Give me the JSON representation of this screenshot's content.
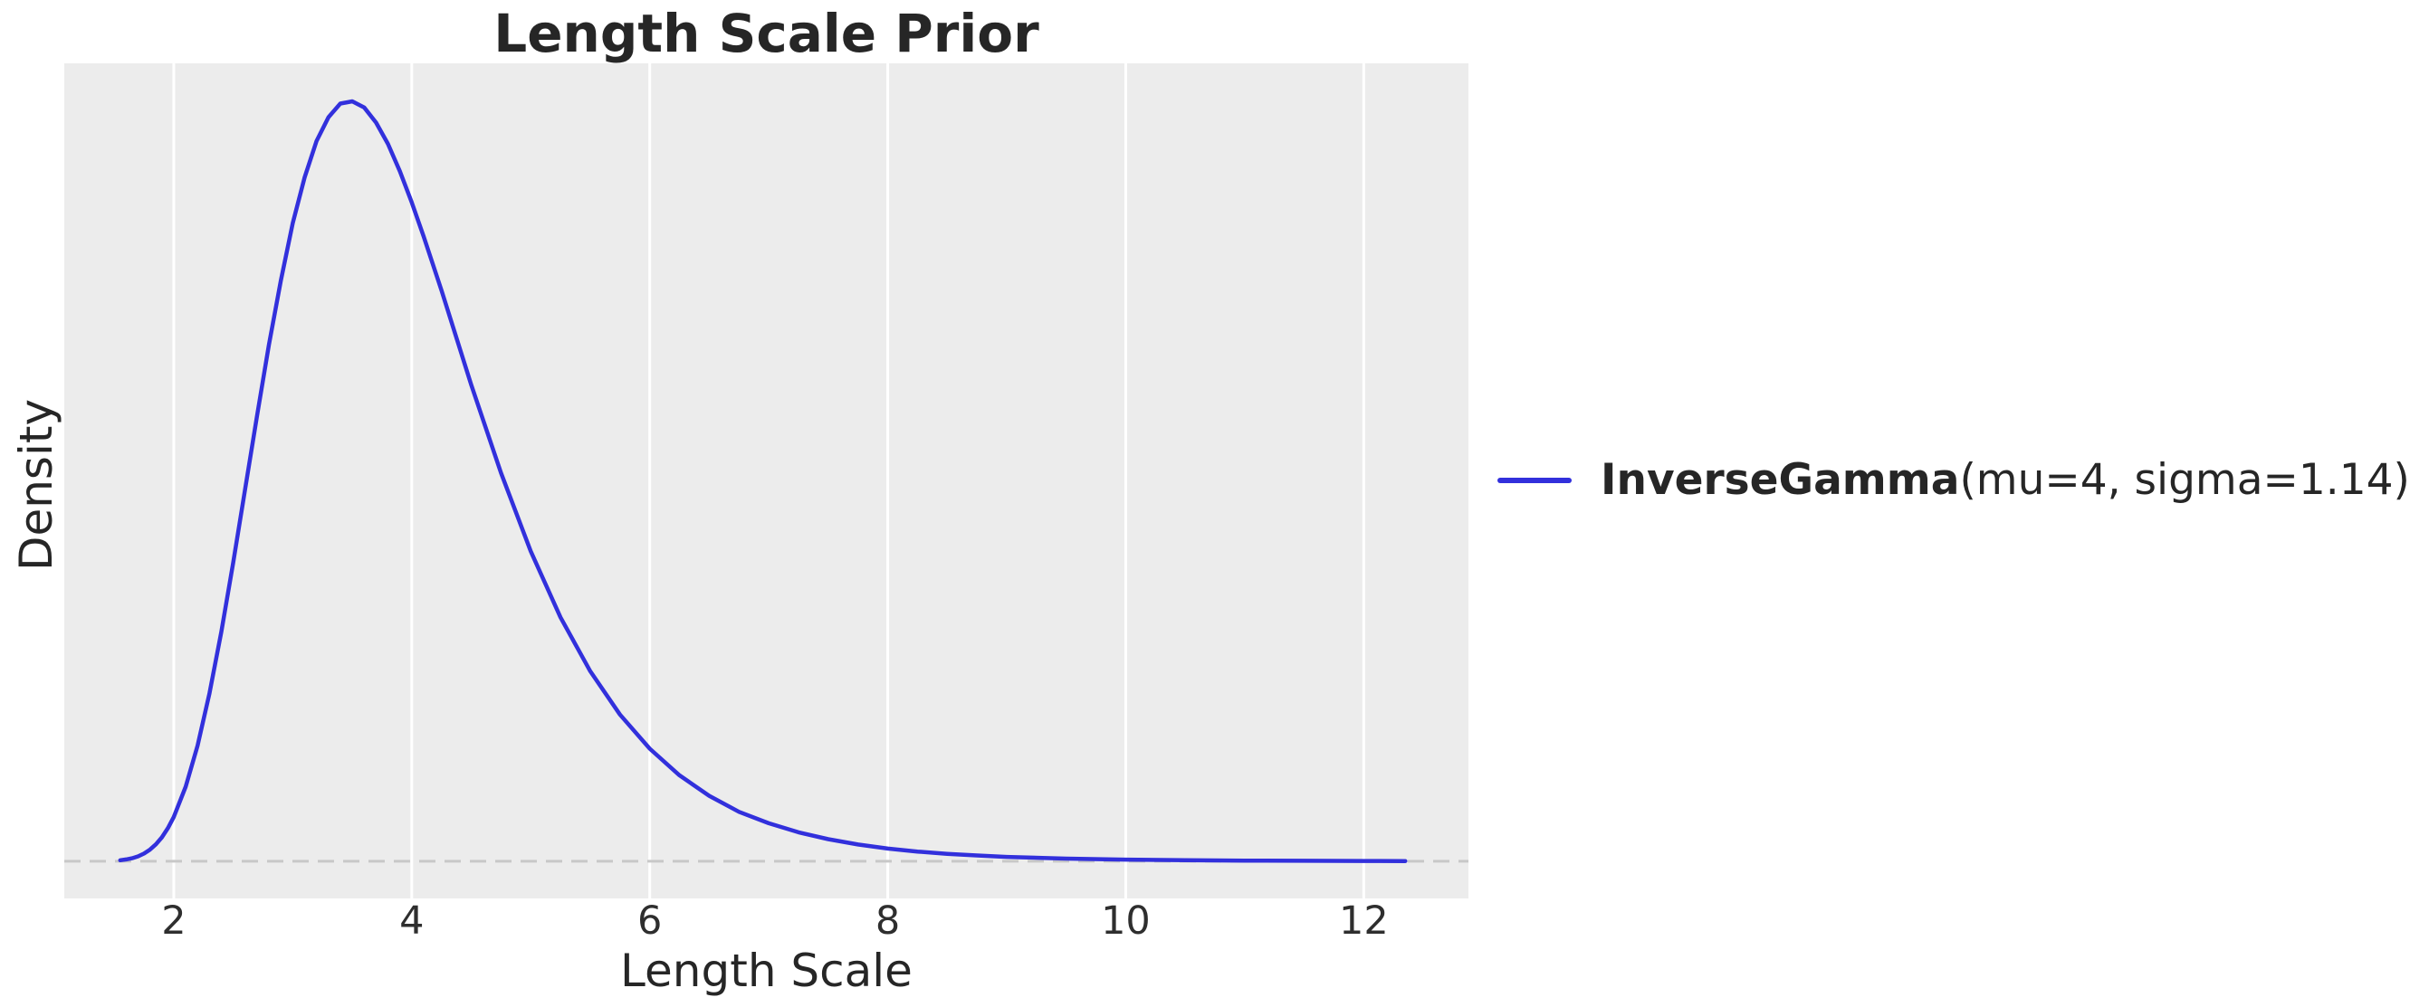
{
  "figure": {
    "title": "Length Scale Prior",
    "xlabel": "Length Scale",
    "ylabel": "Density"
  },
  "legend": {
    "position": "center-right outside plot",
    "label_bold": "InverseGamma",
    "label_regular": "(mu=4, sigma=1.14)",
    "full_label": "InverseGamma(mu=4, sigma=1.14)"
  },
  "colors": {
    "figure_background": "#ffffff",
    "panel_background": "#ececec",
    "gridline": "#ffffff",
    "curve": "#3230dc",
    "zero_line": "#c8c8c8",
    "text": "#262626",
    "tick_text": "#2e2e2e"
  },
  "chart_data": {
    "type": "line",
    "title": "Length Scale Prior",
    "xlabel": "Length Scale",
    "ylabel": "Density",
    "xlim": [
      1.08,
      12.88
    ],
    "ylim": [
      -0.049,
      1.05
    ],
    "x_ticks": [
      2,
      4,
      6,
      8,
      10,
      12
    ],
    "y_ticks": [],
    "grid": "vertical-gridlines-only",
    "zero_line": {
      "y": 0,
      "style": "dashed",
      "color": "#c8c8c8",
      "dash": [
        18,
        10
      ],
      "width": 3
    },
    "legend_position": "right of plot, vertically centered",
    "series": [
      {
        "name": "InverseGamma(mu=4, sigma=1.14)",
        "color": "#3230dc",
        "line_width": 4.5,
        "peak_x": 3.48,
        "density_normalized_to_peak": true,
        "points": [
          [
            1.55,
            0.0013
          ],
          [
            1.6,
            0.0023
          ],
          [
            1.65,
            0.0039
          ],
          [
            1.7,
            0.0064
          ],
          [
            1.75,
            0.01
          ],
          [
            1.8,
            0.0152
          ],
          [
            1.85,
            0.0222
          ],
          [
            1.9,
            0.0314
          ],
          [
            1.95,
            0.0434
          ],
          [
            2.0,
            0.058
          ],
          [
            2.1,
            0.098
          ],
          [
            2.2,
            0.152
          ],
          [
            2.3,
            0.221
          ],
          [
            2.4,
            0.302
          ],
          [
            2.5,
            0.393
          ],
          [
            2.6,
            0.49
          ],
          [
            2.7,
            0.586
          ],
          [
            2.8,
            0.68
          ],
          [
            2.9,
            0.764
          ],
          [
            3.0,
            0.84
          ],
          [
            3.1,
            0.9
          ],
          [
            3.2,
            0.948
          ],
          [
            3.3,
            0.979
          ],
          [
            3.4,
            0.997
          ],
          [
            3.5,
            1.0
          ],
          [
            3.6,
            0.992
          ],
          [
            3.7,
            0.972
          ],
          [
            3.8,
            0.944
          ],
          [
            3.9,
            0.908
          ],
          [
            4.0,
            0.867
          ],
          [
            4.1,
            0.822
          ],
          [
            4.25,
            0.751
          ],
          [
            4.5,
            0.627
          ],
          [
            4.75,
            0.511
          ],
          [
            5.0,
            0.408
          ],
          [
            5.25,
            0.321
          ],
          [
            5.5,
            0.25
          ],
          [
            5.75,
            0.193
          ],
          [
            6.0,
            0.148
          ],
          [
            6.25,
            0.113
          ],
          [
            6.5,
            0.086
          ],
          [
            6.75,
            0.065
          ],
          [
            7.0,
            0.05
          ],
          [
            7.25,
            0.038
          ],
          [
            7.5,
            0.029
          ],
          [
            7.75,
            0.022
          ],
          [
            8.0,
            0.0166
          ],
          [
            8.25,
            0.0127
          ],
          [
            8.5,
            0.0097
          ],
          [
            8.75,
            0.0075
          ],
          [
            9.0,
            0.0057
          ],
          [
            9.5,
            0.0034
          ],
          [
            10.0,
            0.0021
          ],
          [
            10.5,
            0.0013
          ],
          [
            11.0,
            0.0008
          ],
          [
            11.5,
            0.0005
          ],
          [
            12.0,
            0.0003
          ],
          [
            12.35,
            0.00023
          ]
        ]
      }
    ]
  }
}
